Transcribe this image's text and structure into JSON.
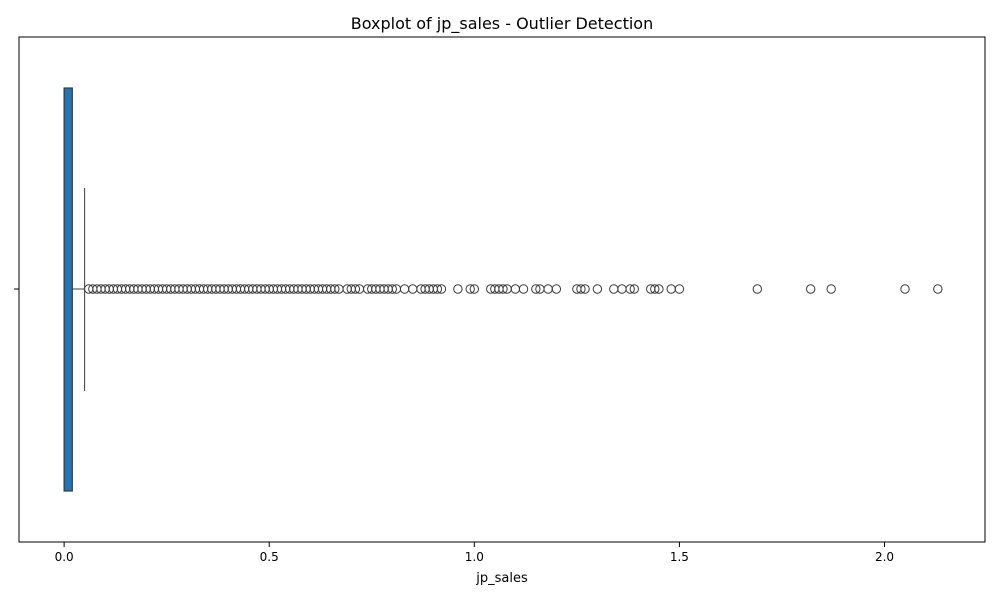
{
  "chart_data": {
    "type": "boxplot",
    "title": "Boxplot of jp_sales - Outlier Detection",
    "xlabel": "jp_sales",
    "ylabel": "",
    "xlim": [
      -0.11,
      2.245
    ],
    "x_ticks": [
      0.0,
      0.5,
      1.0,
      1.5,
      2.0
    ],
    "x_tick_labels": [
      "0.0",
      "0.5",
      "1.0",
      "1.5",
      "2.0"
    ],
    "orientation": "horizontal",
    "grid": false,
    "legend": "none",
    "box": {
      "min": 0.0,
      "q1": 0.0,
      "median": 0.0,
      "q3": 0.02,
      "whisker_low": 0.0,
      "whisker_high": 0.05
    },
    "outliers": [
      0.06,
      0.07,
      0.08,
      0.09,
      0.1,
      0.11,
      0.12,
      0.13,
      0.14,
      0.15,
      0.16,
      0.17,
      0.18,
      0.19,
      0.2,
      0.21,
      0.22,
      0.23,
      0.24,
      0.25,
      0.26,
      0.27,
      0.28,
      0.29,
      0.3,
      0.31,
      0.32,
      0.33,
      0.34,
      0.35,
      0.36,
      0.37,
      0.38,
      0.39,
      0.4,
      0.41,
      0.42,
      0.43,
      0.44,
      0.45,
      0.46,
      0.47,
      0.48,
      0.49,
      0.5,
      0.51,
      0.52,
      0.53,
      0.54,
      0.55,
      0.56,
      0.57,
      0.58,
      0.59,
      0.6,
      0.61,
      0.62,
      0.63,
      0.64,
      0.65,
      0.66,
      0.67,
      0.69,
      0.7,
      0.71,
      0.72,
      0.74,
      0.75,
      0.76,
      0.77,
      0.78,
      0.79,
      0.8,
      0.81,
      0.83,
      0.85,
      0.87,
      0.88,
      0.89,
      0.9,
      0.91,
      0.92,
      0.96,
      0.99,
      1.0,
      1.04,
      1.05,
      1.06,
      1.07,
      1.08,
      1.1,
      1.12,
      1.15,
      1.16,
      1.18,
      1.2,
      1.25,
      1.26,
      1.27,
      1.3,
      1.34,
      1.36,
      1.38,
      1.39,
      1.43,
      1.44,
      1.45,
      1.48,
      1.5,
      1.69,
      1.82,
      1.87,
      2.05,
      2.13
    ],
    "colors": {
      "box_fill": "#1f77b4",
      "box_edge": "#3b3b3b",
      "whisker": "#3b3b3b",
      "outlier_edge": "#3b3b3b",
      "outlier_fill": "none",
      "axes": "#000000"
    }
  }
}
